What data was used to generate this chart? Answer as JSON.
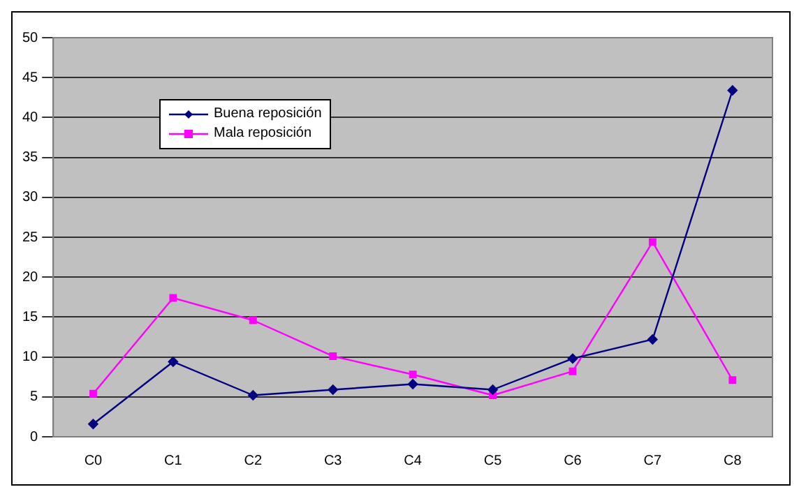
{
  "chart_data": {
    "type": "line",
    "categories": [
      "C0",
      "C1",
      "C2",
      "C3",
      "C4",
      "C5",
      "C6",
      "C7",
      "C8"
    ],
    "series": [
      {
        "name": "Buena reposición",
        "color": "#000080",
        "marker": "diamond",
        "values": [
          1.6,
          9.4,
          5.2,
          5.9,
          6.6,
          5.9,
          9.8,
          12.2,
          43.4
        ]
      },
      {
        "name": "Mala reposición",
        "color": "#ff00ff",
        "marker": "square",
        "values": [
          5.4,
          17.4,
          14.6,
          10.1,
          7.8,
          5.2,
          8.2,
          24.4,
          7.1
        ]
      }
    ],
    "ylim": [
      0,
      50
    ],
    "yticks": [
      0,
      5,
      10,
      15,
      20,
      25,
      30,
      35,
      40,
      45,
      50
    ],
    "grid": "y",
    "legend": "top left",
    "line_style": "solid"
  }
}
